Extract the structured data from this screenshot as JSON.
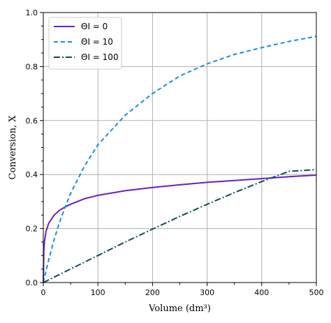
{
  "chart_data": {
    "type": "line",
    "xlabel": "Volume (dm³)",
    "ylabel": "Conversion, X",
    "xlim": [
      0,
      500
    ],
    "ylim": [
      0,
      1.0
    ],
    "xticks": [
      0,
      100,
      200,
      300,
      400,
      500
    ],
    "yticks": [
      0.0,
      0.2,
      0.4,
      0.6,
      0.8,
      1.0
    ],
    "ytick_labels": [
      "0.0",
      "0.2",
      "0.4",
      "0.6",
      "0.8",
      "1.0"
    ],
    "grid": true,
    "legend": "top-left",
    "series": [
      {
        "name": "ΘI = 0",
        "color": "#6a1fc4",
        "style": "solid",
        "x": [
          0,
          1,
          2,
          5,
          10,
          20,
          30,
          40,
          50,
          75,
          100,
          150,
          200,
          250,
          300,
          350,
          400,
          450,
          500
        ],
        "y": [
          0,
          0.12,
          0.15,
          0.19,
          0.22,
          0.25,
          0.268,
          0.28,
          0.29,
          0.31,
          0.323,
          0.34,
          0.352,
          0.362,
          0.371,
          0.378,
          0.385,
          0.392,
          0.398
        ]
      },
      {
        "name": "ΘI = 10",
        "color": "#1a8fdc",
        "style": "dashed",
        "x": [
          0,
          10,
          20,
          30,
          40,
          50,
          75,
          100,
          150,
          200,
          250,
          300,
          350,
          400,
          450,
          500
        ],
        "y": [
          0,
          0.085,
          0.16,
          0.225,
          0.28,
          0.33,
          0.43,
          0.51,
          0.62,
          0.7,
          0.765,
          0.81,
          0.845,
          0.87,
          0.893,
          0.912
        ]
      },
      {
        "name": "ΘI = 100",
        "color": "#0d4f57",
        "style": "dashdot",
        "x": [
          0,
          50,
          100,
          150,
          200,
          250,
          300,
          350,
          400,
          450,
          500
        ],
        "y": [
          0,
          0.05,
          0.1,
          0.15,
          0.198,
          0.245,
          0.29,
          0.333,
          0.374,
          0.412,
          0.418
        ]
      }
    ]
  }
}
